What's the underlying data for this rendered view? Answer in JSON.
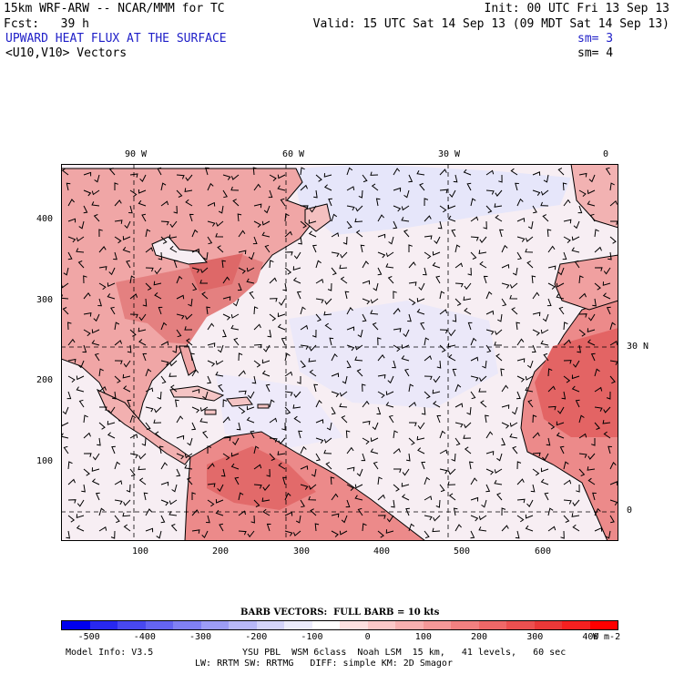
{
  "header": {
    "model_line": "15km WRF-ARW -- NCAR/MMM for TC",
    "init_line": "Init: 00 UTC Fri 13 Sep 13",
    "fcst_line": "Fcst:   39 h",
    "valid_line": "Valid: 15 UTC Sat 14 Sep 13 (09 MDT Sat 14 Sep 13)",
    "field_title": "UPWARD HEAT FLUX AT THE SURFACE",
    "field_sm": "sm= 3",
    "vector_title": "<U10,V10> Vectors",
    "vector_sm": "sm= 4"
  },
  "map": {
    "top_lon_labels": [
      "90 W",
      "60 W",
      "30 W",
      "0"
    ],
    "right_lat_labels": [
      "30 N",
      "0"
    ],
    "left_axis_labels": [
      "400",
      "300",
      "200",
      "100"
    ],
    "bottom_axis_labels": [
      "100",
      "200",
      "300",
      "400",
      "500",
      "600"
    ],
    "colors": {
      "ocean": "#f7eef3",
      "ocean_cool": "#e4e4fa",
      "land_warm": "#f0a8a8",
      "land_hot": "#e87272",
      "outline": "#000000",
      "barb": "#000000"
    }
  },
  "colorbar": {
    "title": "BARB VECTORS:  FULL BARB = 10 kts",
    "tick_labels": [
      "-500",
      "-400",
      "-300",
      "-200",
      "-100",
      "0",
      "100",
      "200",
      "300",
      "400"
    ],
    "units": "W m-2",
    "colors": [
      "#0000ee",
      "#2828f0",
      "#4848f0",
      "#6464f2",
      "#8080f4",
      "#9c9cf6",
      "#b8b8f8",
      "#d4d4fa",
      "#ececfc",
      "#ffffff",
      "#fde0e0",
      "#fbc8c8",
      "#f8b0b0",
      "#f59898",
      "#f28080",
      "#ef6868",
      "#ec5050",
      "#ea3838",
      "#f52020",
      "#ff0000"
    ]
  },
  "footer": {
    "model_info": "Model Info: V3.5",
    "physics_line1": "YSU PBL  WSM 6class  Noah LSM  15 km,   41 levels,   60 sec",
    "physics_line2": "LW: RRTM SW: RRTMG   DIFF: simple KM: 2D Smagor"
  }
}
